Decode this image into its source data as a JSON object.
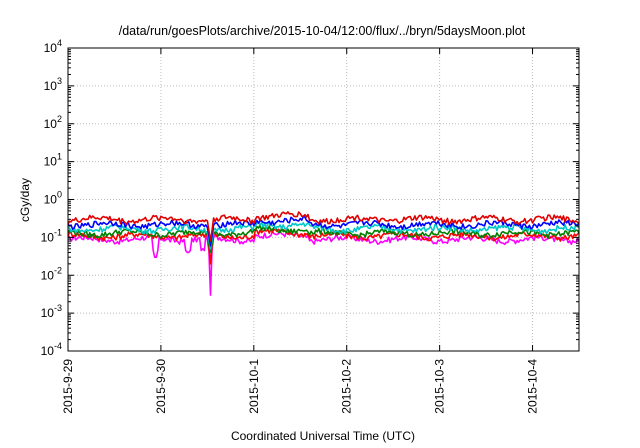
{
  "chart_data": {
    "type": "line",
    "title": "/data/run/goesPlots/archive/2015-10-04/12:00/flux/../bryn/5daysMoon.plot",
    "xlabel": "Coordinated Universal Time (UTC)",
    "ylabel": "cGy/day",
    "yscale": "log",
    "ylim": [
      0.0001,
      10000
    ],
    "xlim": [
      "2015-09-29",
      "2015-10-04 12:00"
    ],
    "y_ticks": [
      {
        "base": "10",
        "exp": "4"
      },
      {
        "base": "10",
        "exp": "3"
      },
      {
        "base": "10",
        "exp": "2"
      },
      {
        "base": "10",
        "exp": "1"
      },
      {
        "base": "10",
        "exp": "0"
      },
      {
        "base": "10",
        "exp": "-1"
      },
      {
        "base": "10",
        "exp": "-2"
      },
      {
        "base": "10",
        "exp": "-3"
      },
      {
        "base": "10",
        "exp": "-4"
      }
    ],
    "x_ticks": [
      "2015-9-29",
      "2015-9-30",
      "2015-10-1",
      "2015-10-2",
      "2015-10-3",
      "2015-10-4"
    ],
    "grid": true,
    "series": [
      {
        "color": "#ff00ff",
        "level": 0.09,
        "dips": [
          {
            "day": 1.53,
            "value": 0.003
          },
          {
            "day": 0.94,
            "value": 0.03
          },
          {
            "day": 1.29,
            "value": 0.04
          },
          {
            "day": 1.45,
            "value": 0.05
          }
        ]
      },
      {
        "color": "#ff0000",
        "level": 0.11,
        "dips": [
          {
            "day": 1.53,
            "value": 0.02
          }
        ]
      },
      {
        "color": "#008000",
        "level": 0.13,
        "dips": [
          {
            "day": 1.53,
            "value": 0.04
          }
        ]
      },
      {
        "color": "#00c8c8",
        "level": 0.17,
        "dips": [
          {
            "day": 1.53,
            "value": 0.05
          }
        ]
      },
      {
        "color": "#0000ff",
        "level": 0.22,
        "dips": [
          {
            "day": 1.53,
            "value": 0.06
          }
        ]
      },
      {
        "color": "#e00000",
        "level": 0.3,
        "dips": [
          {
            "day": 1.53,
            "value": 0.08
          }
        ]
      }
    ]
  }
}
